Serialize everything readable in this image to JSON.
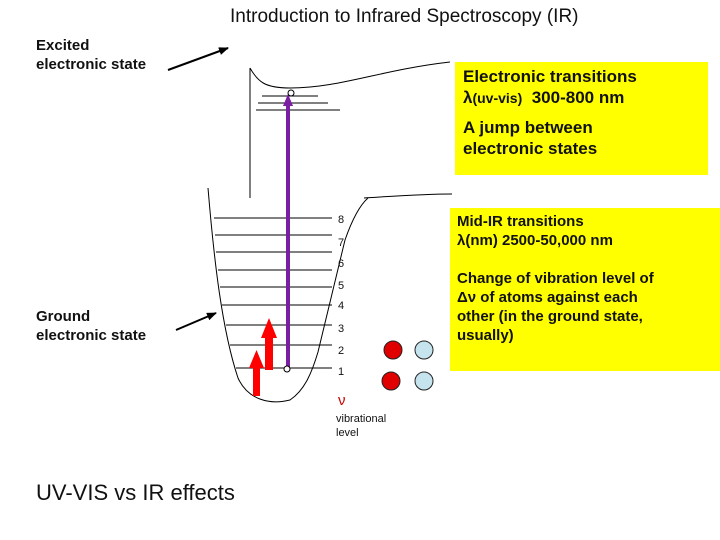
{
  "title": "Introduction to Infrared Spectroscopy (IR)",
  "excited_label": [
    "Excited",
    "electronic state"
  ],
  "ground_label": [
    "Ground",
    "electronic state"
  ],
  "uvvis_box": {
    "line1": "Electronic transitions",
    "line2_symbol": "λ",
    "line2_small": "(uv-vis)",
    "line2_rest": "  300-800 nm",
    "line3": "A jump between",
    "line4": "electronic states"
  },
  "ir_box": {
    "line1": "Mid-IR transitions",
    "line2_symbol": "λ",
    "line2_rest": "(nm) 2500-50,000 nm",
    "line3": "Change of vibration level of",
    "line4_symbol": "Δν",
    "line4_rest": " of atoms against each",
    "line5": "other (in the ground state,",
    "line6": "usually)"
  },
  "vib_levels": [
    "8",
    "7",
    "6",
    "5",
    "4",
    "3",
    "2",
    "1"
  ],
  "nu_symbol": "ν",
  "vib_caption": [
    "vibrational",
    "level"
  ],
  "bottom_text": "UV-VIS vs IR effects",
  "colors": {
    "yellow": "#ffff00",
    "purple": "#7b1fa2",
    "red": "#ff0000",
    "circle_red": "#e00000",
    "circle_blue": "#c6e4ee"
  }
}
